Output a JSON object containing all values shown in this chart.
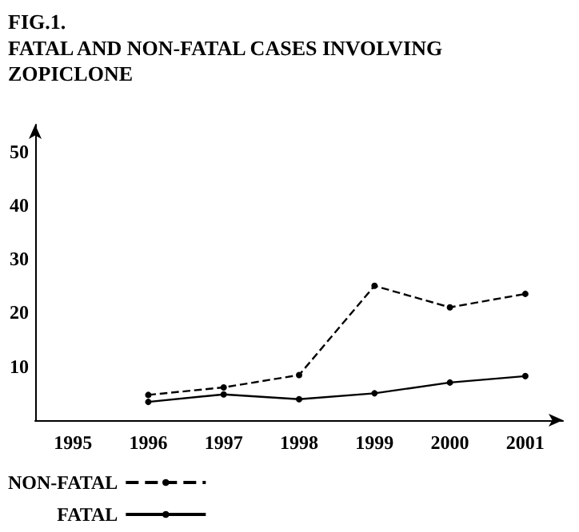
{
  "chart_data": {
    "type": "line",
    "title": "FIG.1.",
    "subtitle": "FATAL AND NON-FATAL CASES INVOLVING\nZOPICLONE",
    "categories": [
      "1995",
      "1996",
      "1997",
      "1998",
      "1999",
      "2000",
      "2001"
    ],
    "series": [
      {
        "name": "NON-FATAL",
        "color": "#000000",
        "line_style": "dashed",
        "values": [
          null,
          4.7,
          6.1,
          8.4,
          25,
          21,
          23.5
        ]
      },
      {
        "name": "FATAL",
        "color": "#000000",
        "line_style": "solid",
        "values": [
          null,
          3.4,
          4.8,
          3.9,
          5,
          7,
          8.2
        ]
      }
    ],
    "ylim": [
      0,
      55
    ],
    "yticks": [
      10,
      20,
      30,
      40,
      50
    ],
    "grid": false,
    "legend": "bottom left",
    "marker": "circle"
  }
}
